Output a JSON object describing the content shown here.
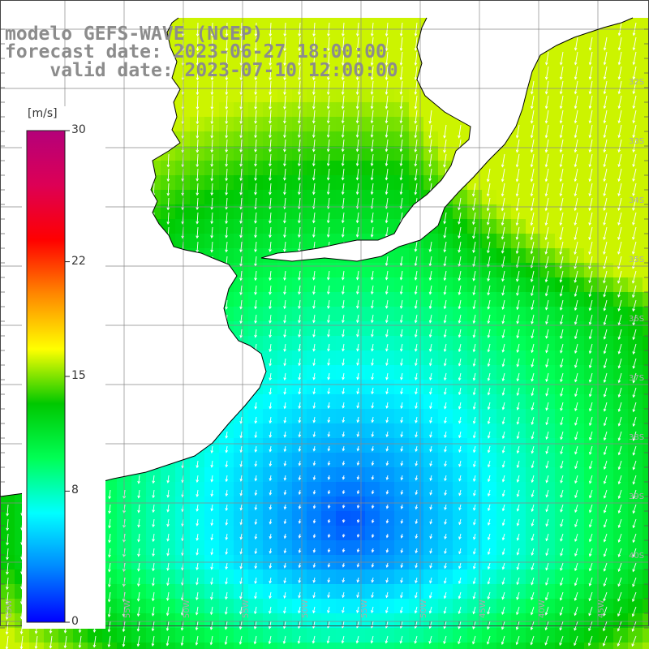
{
  "title": {
    "line1": "modelo GEFS-WAVE (NCEP)",
    "line2": "forecast date: 2023-06-27 18:00:00",
    "line3": "    valid date: 2023-07-10 12:00:00"
  },
  "colorbar": {
    "unit": "[m/s]",
    "ticks": [
      {
        "value": 30,
        "label": "30"
      },
      {
        "value": 22,
        "label": "22"
      },
      {
        "value": 15,
        "label": "15"
      },
      {
        "value": 8,
        "label": "8"
      },
      {
        "value": 0,
        "label": "0"
      }
    ],
    "min": 0,
    "max": 30,
    "stops": [
      "#0000ff",
      "#0088ff",
      "#00ffff",
      "#00ff55",
      "#00c800",
      "#ffff00",
      "#ff8800",
      "#ff0000",
      "#dd0055",
      "#b4007a"
    ]
  },
  "map": {
    "field": "wind speed with direction arrows",
    "land_color": "#ffffff",
    "coast_color": "#000000",
    "grid_color": "#888888",
    "axis_labels_bottom": [
      "65W",
      "60W",
      "55W",
      "50W",
      "55W",
      "50W",
      "55W",
      "50W",
      "45W",
      "40W",
      "45W"
    ],
    "axis_labels_right": [
      "32S",
      "33S",
      "34S",
      "35S",
      "36S",
      "37S",
      "38S",
      "39S",
      "40S"
    ]
  }
}
